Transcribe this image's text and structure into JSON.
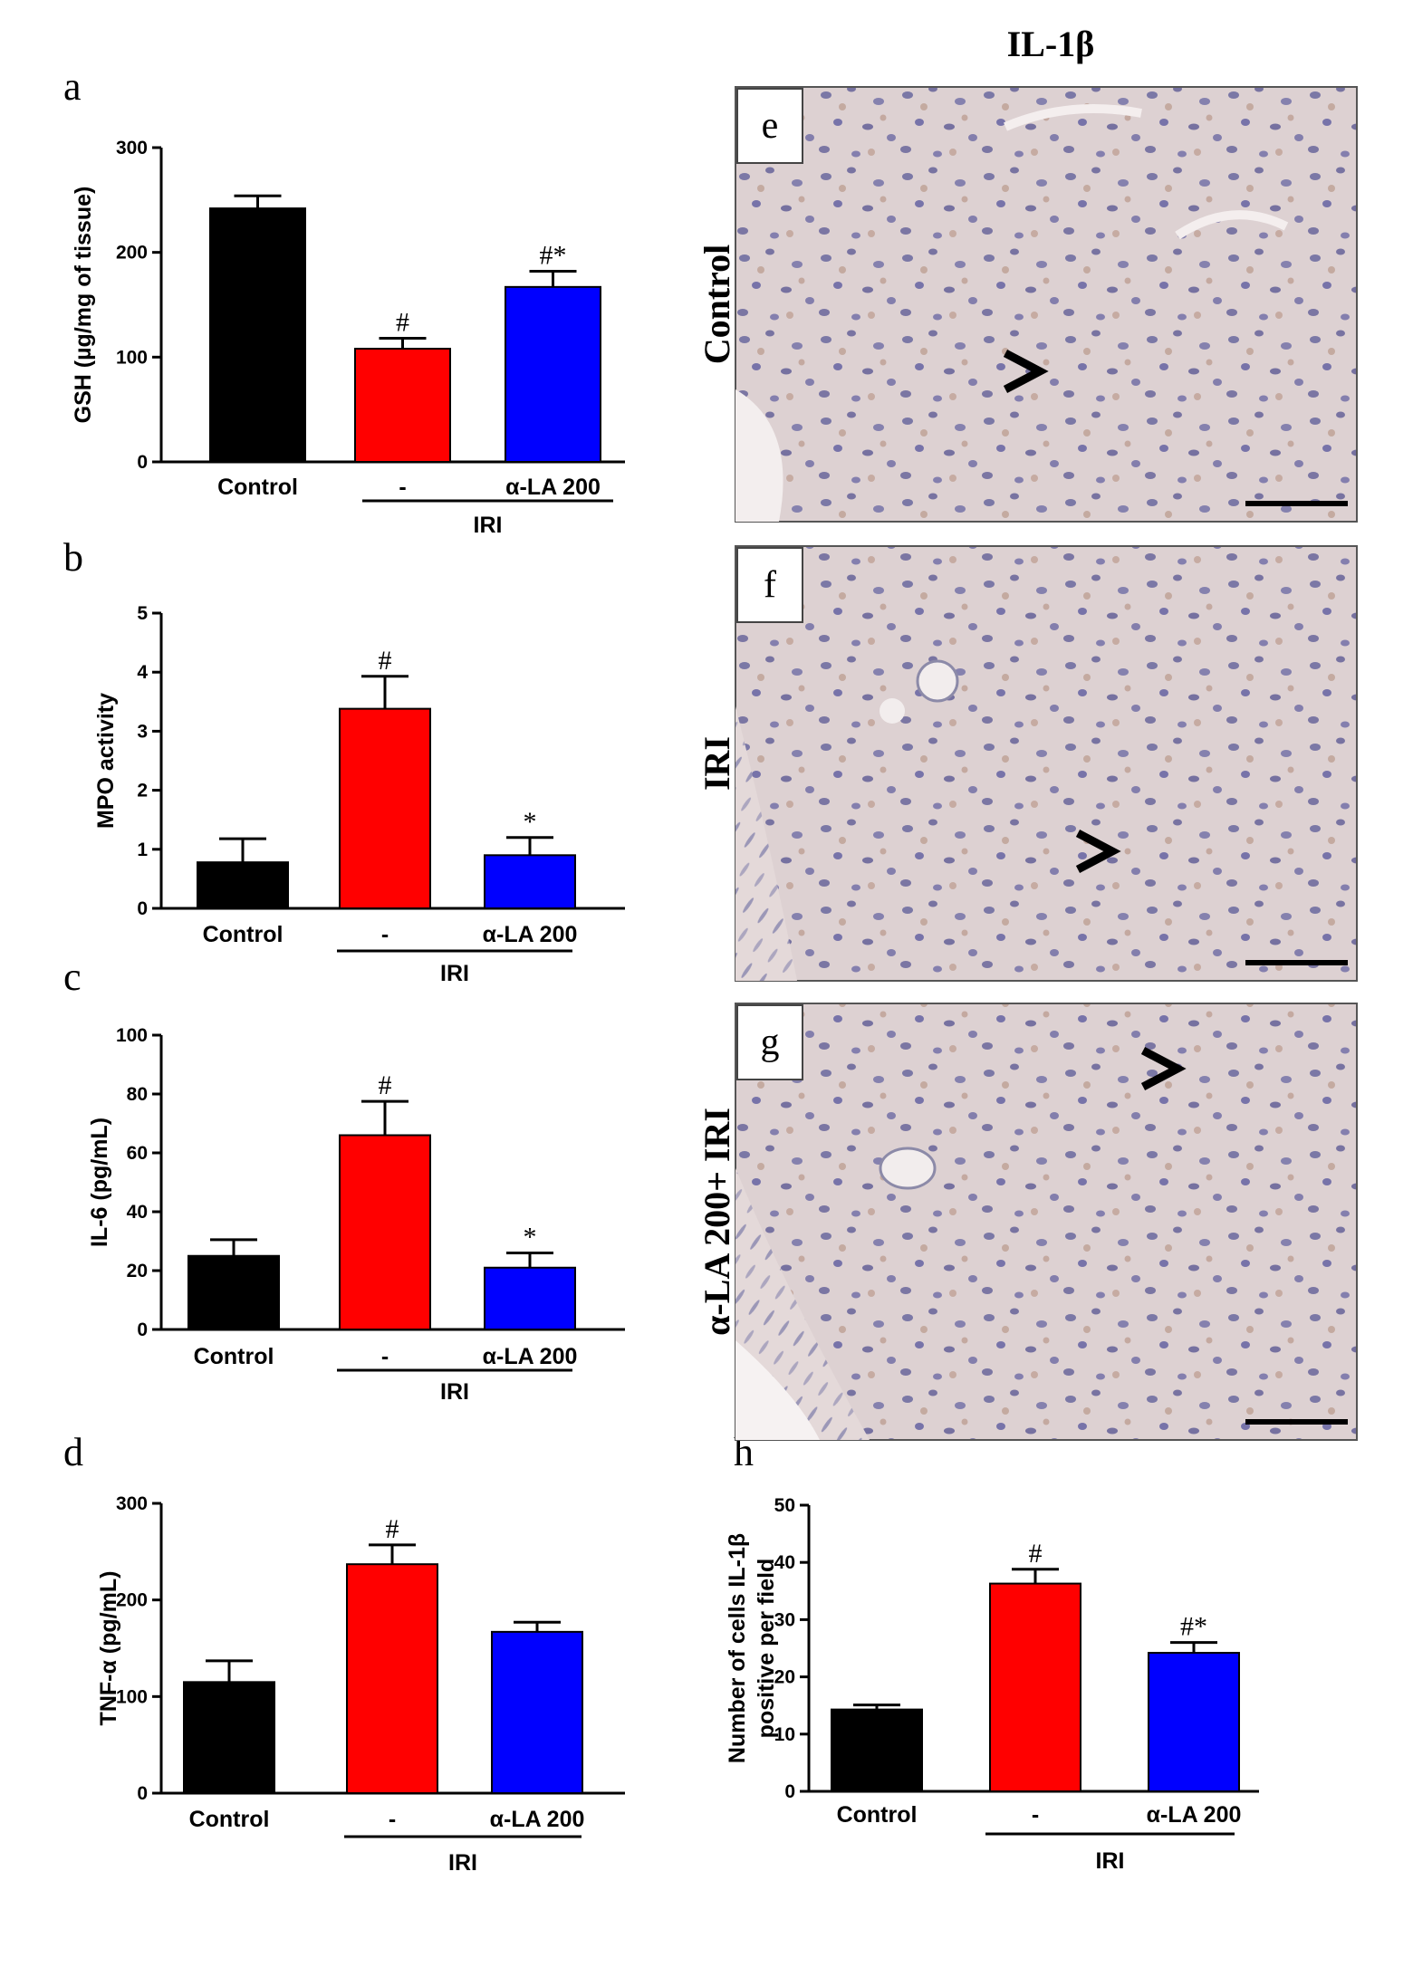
{
  "column_title": "IL-1β",
  "group_label": "IRI",
  "chart_data": [
    {
      "id": "a",
      "type": "bar",
      "panel_letter": "a",
      "ylabel": "GSH (µg/mg of tissue)",
      "ylim": [
        0,
        300
      ],
      "yticks": [
        0,
        100,
        200,
        300
      ],
      "categories": [
        "Control",
        "-",
        "α-LA 200"
      ],
      "values": [
        242,
        108,
        167
      ],
      "errors": [
        12,
        10,
        15
      ],
      "colors": [
        "#000000",
        "#ff0000",
        "#0000ff"
      ],
      "annotations": [
        "",
        "#",
        "#*"
      ]
    },
    {
      "id": "b",
      "type": "bar",
      "panel_letter": "b",
      "ylabel": "MPO activity",
      "ylim": [
        0,
        5
      ],
      "yticks": [
        0,
        1,
        2,
        3,
        4,
        5
      ],
      "categories": [
        "Control",
        "-",
        "α-LA 200"
      ],
      "values": [
        0.78,
        3.38,
        0.9
      ],
      "errors": [
        0.4,
        0.55,
        0.3
      ],
      "colors": [
        "#000000",
        "#ff0000",
        "#0000ff"
      ],
      "annotations": [
        "",
        "#",
        "*"
      ]
    },
    {
      "id": "c",
      "type": "bar",
      "panel_letter": "c",
      "ylabel": "IL-6 (pg/mL)",
      "ylim": [
        0,
        100
      ],
      "yticks": [
        0,
        20,
        40,
        60,
        80,
        100
      ],
      "categories": [
        "Control",
        "-",
        "α-LA 200"
      ],
      "values": [
        25,
        66,
        21
      ],
      "errors": [
        5.5,
        11.5,
        5
      ],
      "colors": [
        "#000000",
        "#ff0000",
        "#0000ff"
      ],
      "annotations": [
        "",
        "#",
        "*"
      ]
    },
    {
      "id": "d",
      "type": "bar",
      "panel_letter": "d",
      "ylabel": "TNF-α (pg/mL)",
      "ylim": [
        0,
        300
      ],
      "yticks": [
        0,
        100,
        200,
        300
      ],
      "categories": [
        "Control",
        "-",
        "α-LA 200"
      ],
      "values": [
        115,
        237,
        167
      ],
      "errors": [
        22,
        20,
        10
      ],
      "colors": [
        "#000000",
        "#ff0000",
        "#0000ff"
      ],
      "annotations": [
        "",
        "#",
        ""
      ]
    },
    {
      "id": "h",
      "type": "bar",
      "panel_letter": "h",
      "ylabel_lines": [
        "Number of cells IL-1β",
        "positive per field"
      ],
      "ylim": [
        0,
        50
      ],
      "yticks": [
        0,
        10,
        20,
        30,
        40,
        50
      ],
      "categories": [
        "Control",
        "-",
        "α-LA 200"
      ],
      "values": [
        14.3,
        36.3,
        24.2
      ],
      "errors": [
        0.8,
        2.5,
        1.8
      ],
      "colors": [
        "#000000",
        "#ff0000",
        "#0000ff"
      ],
      "annotations": [
        "",
        "#",
        "#*"
      ]
    }
  ],
  "micrographs": [
    {
      "id": "e",
      "letter": "e",
      "side_label": "Control",
      "scale_bar": true
    },
    {
      "id": "f",
      "letter": "f",
      "side_label": "IRI",
      "scale_bar": true
    },
    {
      "id": "g",
      "letter": "g",
      "side_label": "α-LA 200+ IRI",
      "scale_bar": true
    }
  ]
}
